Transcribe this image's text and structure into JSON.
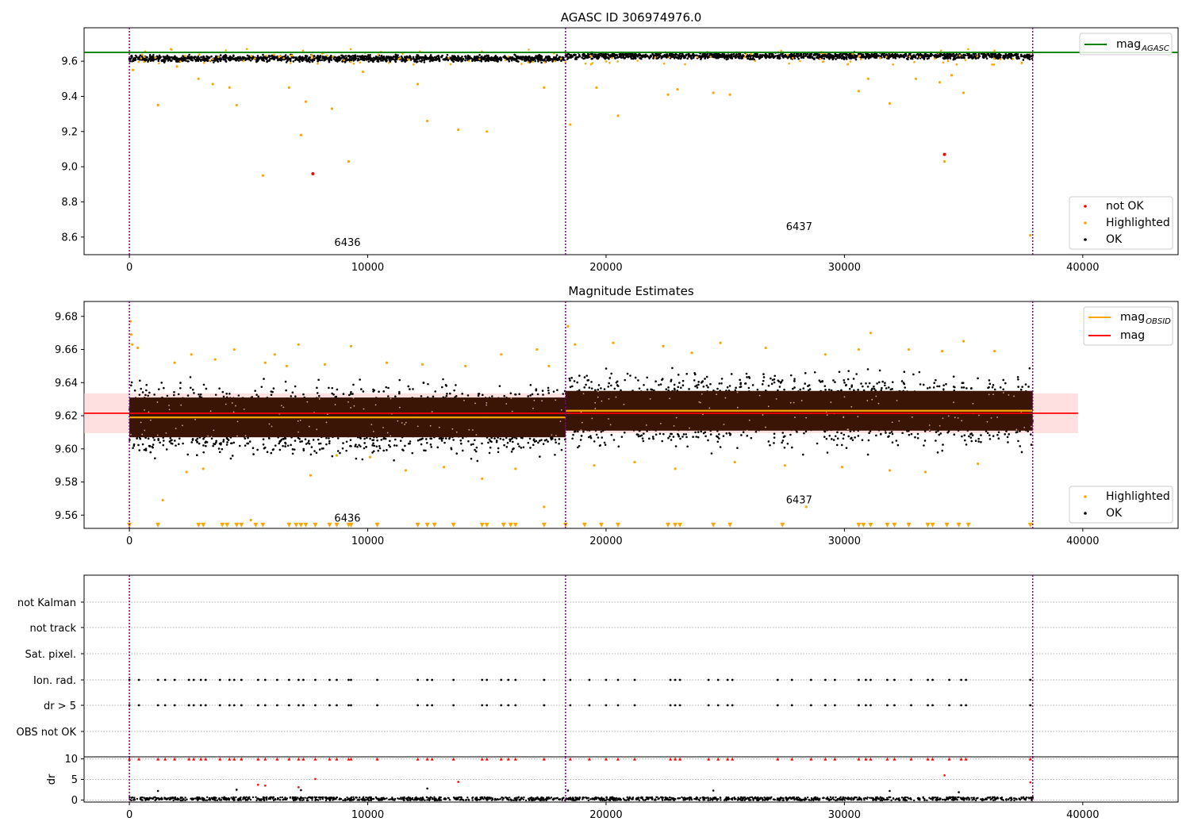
{
  "chart_data": [
    {
      "type": "scatter",
      "title": "AGASC ID 306974976.0",
      "xlabel": "",
      "ylabel": "",
      "xlim": [
        -1900,
        44000
      ],
      "ylim": [
        8.5,
        9.79
      ],
      "x_ticks": [
        "0",
        "10000",
        "20000",
        "30000",
        "40000"
      ],
      "y_ticks": [
        "8.6",
        "8.8",
        "9.0",
        "9.2",
        "9.4",
        "9.6"
      ],
      "obs_boundaries": [
        0,
        18300,
        37900
      ],
      "obsid_labels": [
        {
          "text": "6436",
          "x": 9150,
          "y": 8.55
        },
        {
          "text": "6437",
          "x": 28100,
          "y": 8.64
        }
      ],
      "lines": [
        {
          "name": "mag_AGASC",
          "color": "#008000",
          "x": [
            -1900,
            44000
          ],
          "y": [
            9.65,
            9.65
          ]
        }
      ],
      "bands": [
        {
          "name": "OK",
          "color": "#000000",
          "segments": [
            {
              "x0": 0,
              "x1": 18300,
              "ylo": 9.59,
              "yhi": 9.64
            },
            {
              "x0": 18300,
              "x1": 37900,
              "ylo": 9.605,
              "yhi": 9.655
            }
          ]
        }
      ],
      "highlighted": {
        "color": "#ffa500",
        "x": [
          150,
          1200,
          2000,
          2900,
          3500,
          4200,
          4500,
          5600,
          6700,
          7200,
          7400,
          8500,
          9200,
          9800,
          12100,
          12500,
          13800,
          15000,
          17400,
          18500,
          19600,
          20500,
          22600,
          23000,
          24500,
          25200,
          30600,
          31000,
          31900,
          33000,
          34000,
          34200,
          34500,
          35000,
          37800
        ],
        "y": [
          9.55,
          9.35,
          9.57,
          9.5,
          9.47,
          9.45,
          9.35,
          8.95,
          9.45,
          9.18,
          9.37,
          9.33,
          9.03,
          9.54,
          9.47,
          9.26,
          9.21,
          9.2,
          9.45,
          9.24,
          9.45,
          9.29,
          9.41,
          9.44,
          9.42,
          9.41,
          9.43,
          9.5,
          9.36,
          9.5,
          9.48,
          9.03,
          9.52,
          9.42,
          8.61
        ]
      },
      "not_ok": {
        "color": "#ff0000",
        "x": [
          7700,
          34200
        ],
        "y": [
          8.96,
          9.07
        ]
      },
      "legend": [
        {
          "label": "mag",
          "subscript": "AGASC",
          "kind": "line",
          "color": "#008000",
          "placement": "upper-right"
        },
        {
          "label": "not OK",
          "kind": "dot",
          "color": "#ff0000",
          "placement": "lower-right"
        },
        {
          "label": "Highlighted",
          "kind": "dot",
          "color": "#ffa500",
          "placement": "lower-right"
        },
        {
          "label": "OK",
          "kind": "dot",
          "color": "#000000",
          "placement": "lower-right"
        }
      ]
    },
    {
      "type": "scatter",
      "title": "Magnitude Estimates",
      "xlabel": "",
      "ylabel": "",
      "xlim": [
        -1900,
        44000
      ],
      "ylim": [
        9.552,
        9.689
      ],
      "x_ticks": [
        "0",
        "10000",
        "20000",
        "30000",
        "40000"
      ],
      "y_ticks": [
        "9.56",
        "9.58",
        "9.60",
        "9.62",
        "9.64",
        "9.66",
        "9.68"
      ],
      "obs_boundaries": [
        0,
        18300,
        37900
      ],
      "obsid_labels": [
        {
          "text": "6436",
          "x": 9150,
          "y": 9.556
        },
        {
          "text": "6437",
          "x": 28100,
          "y": 9.567
        }
      ],
      "mag_band": {
        "color": "#ffcccc",
        "x0": -1900,
        "x1": 39800,
        "ylo": 9.6095,
        "yhi": 9.6335
      },
      "lines": [
        {
          "name": "mag",
          "color": "#ff0000",
          "x": [
            -1900,
            39800
          ],
          "y": [
            9.6215,
            9.6215
          ]
        },
        {
          "name": "mag_OBSID",
          "color": "#ffa500",
          "segments": [
            {
              "x0": 0,
              "x1": 18300,
              "y": 9.619
            },
            {
              "x0": 18300,
              "x1": 37900,
              "y": 9.623
            }
          ]
        }
      ],
      "bands": [
        {
          "name": "OK",
          "color": "#000000",
          "segments": [
            {
              "x0": 0,
              "x1": 18300,
              "ylo": 9.59,
              "yhi": 9.645,
              "core_lo": 9.607,
              "core_hi": 9.631
            },
            {
              "x0": 18300,
              "x1": 37900,
              "ylo": 9.595,
              "yhi": 9.652,
              "core_lo": 9.611,
              "core_hi": 9.635
            }
          ]
        }
      ],
      "highlighted": {
        "color": "#ffa500",
        "x": [
          50,
          80,
          120,
          350,
          1400,
          1900,
          2400,
          2600,
          3100,
          3600,
          4400,
          5100,
          5700,
          6100,
          6600,
          7100,
          7600,
          8200,
          8700,
          9300,
          10100,
          10800,
          11600,
          12300,
          13200,
          14100,
          14800,
          15600,
          16200,
          17100,
          17400,
          17600,
          18400,
          18700,
          19500,
          20300,
          21200,
          22400,
          22900,
          23600,
          24800,
          25400,
          26700,
          27500,
          28400,
          29200,
          29900,
          30600,
          31100,
          31900,
          32700,
          33400,
          34100,
          35000,
          35600,
          36300
        ],
        "y": [
          9.677,
          9.669,
          9.663,
          9.661,
          9.569,
          9.652,
          9.586,
          9.657,
          9.588,
          9.654,
          9.66,
          9.557,
          9.652,
          9.657,
          9.65,
          9.663,
          9.584,
          9.651,
          9.596,
          9.662,
          9.595,
          9.652,
          9.587,
          9.651,
          9.589,
          9.65,
          9.582,
          9.657,
          9.588,
          9.66,
          9.565,
          9.65,
          9.674,
          9.663,
          9.59,
          9.664,
          9.592,
          9.662,
          9.588,
          9.658,
          9.664,
          9.592,
          9.661,
          9.59,
          9.565,
          9.657,
          9.589,
          9.66,
          9.67,
          9.587,
          9.66,
          9.586,
          9.659,
          9.665,
          9.591,
          9.659
        ]
      },
      "bottom_markers": {
        "color": "#ffa500",
        "y": 9.554,
        "x": [
          0,
          1200,
          2900,
          3100,
          3900,
          4100,
          4500,
          4700,
          5300,
          5600,
          6700,
          7000,
          7200,
          7400,
          7800,
          8400,
          8700,
          9200,
          9300,
          10400,
          12100,
          12500,
          12800,
          13600,
          14800,
          15000,
          15700,
          16000,
          16200,
          17400,
          18300,
          19100,
          19800,
          20500,
          22600,
          22900,
          23100,
          24500,
          25200,
          27400,
          30600,
          30800,
          31100,
          31800,
          32100,
          32700,
          33500,
          33700,
          34300,
          34800,
          35200,
          37800
        ]
      },
      "legend": [
        {
          "label": "mag",
          "subscript": "OBSID",
          "kind": "line",
          "color": "#ffa500",
          "placement": "upper-right"
        },
        {
          "label": "mag",
          "kind": "line",
          "color": "#ff0000",
          "placement": "upper-right"
        },
        {
          "label": "Highlighted",
          "kind": "dot",
          "color": "#ffa500",
          "placement": "lower-right"
        },
        {
          "label": "OK",
          "kind": "dot",
          "color": "#000000",
          "placement": "lower-right"
        }
      ]
    },
    {
      "type": "scatter",
      "title": "",
      "xlabel": "",
      "ylabel": "",
      "xlim": [
        -1900,
        44000
      ],
      "categories": [
        "not Kalman",
        "not track",
        "Sat. pixel.",
        "Ion. rad.",
        "dr > 5",
        "OBS not OK"
      ],
      "obs_boundaries": [
        0,
        18300,
        37900
      ],
      "flag_events": {
        "color": "#000000",
        "rows": [
          "Ion. rad.",
          "dr > 5"
        ],
        "x": [
          0,
          400,
          1200,
          1500,
          1900,
          2500,
          2700,
          3000,
          3200,
          3800,
          4200,
          4400,
          4700,
          5400,
          5700,
          6200,
          6700,
          7100,
          7300,
          7800,
          8400,
          8700,
          9200,
          9300,
          10400,
          12100,
          12500,
          12700,
          13600,
          14800,
          15000,
          15600,
          15900,
          16200,
          17400,
          18500,
          19300,
          20000,
          20500,
          21200,
          22700,
          22900,
          23100,
          24300,
          24700,
          25100,
          25300,
          27200,
          27800,
          28600,
          29200,
          29600,
          30600,
          30900,
          31100,
          31800,
          32100,
          32800,
          33500,
          33700,
          34400,
          34900,
          35100,
          37800
        ]
      }
    },
    {
      "type": "scatter",
      "title": "",
      "xlabel": "",
      "ylabel": "dr",
      "xlim": [
        -1900,
        44000
      ],
      "ylim": [
        -0.5,
        10.5
      ],
      "x_ticks": [
        "0",
        "10000",
        "20000",
        "30000",
        "40000"
      ],
      "y_ticks": [
        "0",
        "5",
        "10"
      ],
      "obs_boundaries": [
        0,
        18300,
        37900
      ],
      "ok_band": {
        "color": "#000000",
        "x0": 0,
        "x1": 37900,
        "ylo": -0.1,
        "yhi": 0.7
      },
      "clipped_markers": {
        "color": "#ff0000",
        "y": 10,
        "x": [
          0,
          400,
          1200,
          1500,
          1900,
          2500,
          2700,
          3000,
          3200,
          3800,
          4200,
          4400,
          4700,
          5400,
          5700,
          6200,
          6700,
          7100,
          7300,
          7800,
          8400,
          8700,
          9200,
          9300,
          10400,
          12100,
          12500,
          12700,
          13600,
          14800,
          15000,
          15600,
          15900,
          16200,
          17400,
          18500,
          19300,
          20000,
          20500,
          21200,
          22700,
          22900,
          23100,
          24300,
          24700,
          25100,
          25300,
          27200,
          27800,
          28600,
          29200,
          29600,
          30600,
          30900,
          31100,
          31800,
          32100,
          32800,
          33500,
          33700,
          34400,
          34900,
          35100,
          37800
        ]
      },
      "red_points": {
        "color": "#ff0000",
        "x": [
          5400,
          5700,
          7100,
          7800,
          13800,
          34200,
          37800
        ],
        "y": [
          3.7,
          3.5,
          3.1,
          5.1,
          4.4,
          6,
          4.3
        ]
      },
      "black_points": {
        "color": "#000000",
        "x": [
          1200,
          4500,
          7200,
          12500,
          18400,
          24500,
          31900,
          34800
        ],
        "y": [
          2.2,
          2.5,
          2.4,
          2.8,
          2.3,
          2.3,
          2.2,
          1.9
        ]
      }
    }
  ]
}
